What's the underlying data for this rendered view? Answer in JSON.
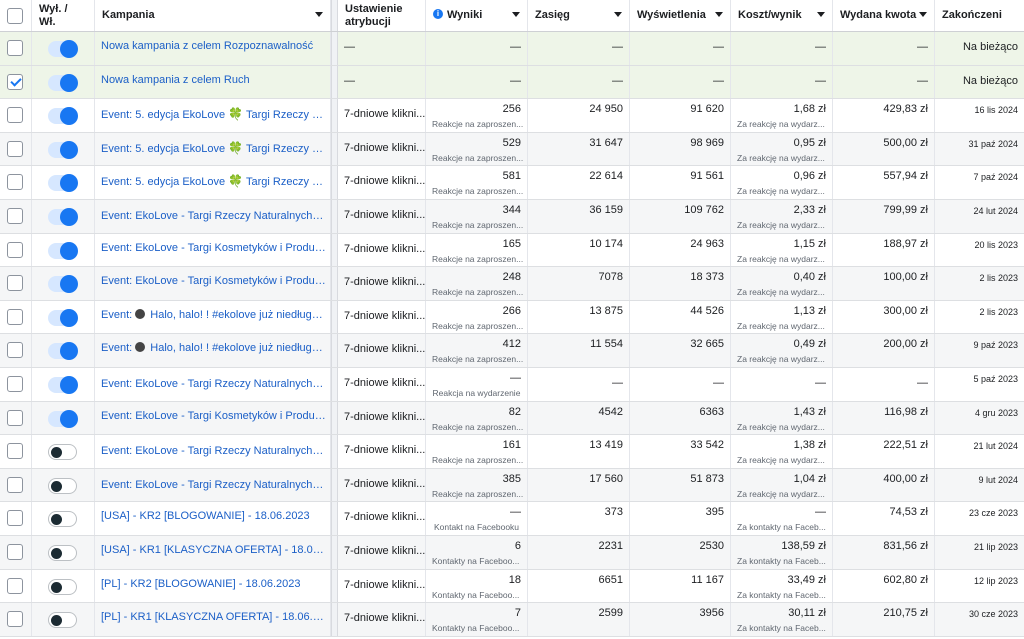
{
  "columns": {
    "toggle": "Wył. / Wł.",
    "campaign": "Kampania",
    "attribution": "Ustawienie atrybucji",
    "results": "Wyniki",
    "reach": "Zasięg",
    "impressions": "Wyświetlenia",
    "cost_per_result": "Koszt/wynik",
    "amount_spent": "Wydana kwota",
    "ends": "Zakończeni"
  },
  "icons": {
    "clover": "🍀",
    "info": "i"
  },
  "rows": [
    {
      "checked": false,
      "on": true,
      "green": true,
      "name": "Nowa kampania z celem Rozpoznawalność",
      "attr": "—",
      "results": "—",
      "results_sub": "",
      "reach": "—",
      "imp": "—",
      "cost": "—",
      "cost_sub": "",
      "spent": "—",
      "ends": "Na bieżąco"
    },
    {
      "checked": true,
      "on": true,
      "green": true,
      "name": "Nowa kampania z celem Ruch",
      "attr": "—",
      "results": "—",
      "results_sub": "",
      "reach": "—",
      "imp": "—",
      "cost": "—",
      "cost_sub": "",
      "spent": "—",
      "ends": "Na bieżąco"
    },
    {
      "checked": false,
      "on": true,
      "name_pre": "Event: 5. edycja EkoLove ",
      "name_icon": "clover",
      "name_post": " Targi Rzeczy Natur...",
      "attr": "7-dniowe klikni...",
      "results": "256",
      "results_sub": "Reakcje na zaproszen...",
      "reach": "24 950",
      "imp": "91 620",
      "cost": "1,68 zł",
      "cost_sub": "Za reakcję na wydarz...",
      "spent": "429,83 zł",
      "ends": "16 lis 2024"
    },
    {
      "checked": false,
      "on": true,
      "name_pre": "Event: 5. edycja EkoLove ",
      "name_icon": "clover",
      "name_post": " Targi Rzeczy Natur...",
      "attr": "7-dniowe klikni...",
      "results": "529",
      "results_sub": "Reakcje na zaproszen...",
      "reach": "31 647",
      "imp": "98 969",
      "cost": "0,95 zł",
      "cost_sub": "Za reakcję na wydarz...",
      "spent": "500,00 zł",
      "ends": "31 paź 2024"
    },
    {
      "checked": false,
      "on": true,
      "name_pre": "Event: 5. edycja EkoLove ",
      "name_icon": "clover",
      "name_post": " Targi Rzeczy Natur...",
      "attr": "7-dniowe klikni...",
      "results": "581",
      "results_sub": "Reakcje na zaproszen...",
      "reach": "22 614",
      "imp": "91 561",
      "cost": "0,96 zł",
      "cost_sub": "Za reakcję na wydarz...",
      "spent": "557,94 zł",
      "ends": "7 paź 2024"
    },
    {
      "checked": false,
      "on": true,
      "name_pre": "Event: EkoLove - Targi Rzeczy Naturalnych",
      "name_icon": "clover",
      "name_post": " 2...",
      "attr": "7-dniowe klikni...",
      "results": "344",
      "results_sub": "Reakcje na zaproszen...",
      "reach": "36 159",
      "imp": "109 762",
      "cost": "2,33 zł",
      "cost_sub": "Za reakcję na wydarz...",
      "spent": "799,99 zł",
      "ends": "24 lut 2024"
    },
    {
      "checked": false,
      "on": true,
      "name_pre": "Event: EkoLove - Targi Kosmetyków i Produktó...",
      "attr": "7-dniowe klikni...",
      "results": "165",
      "results_sub": "Reakcje na zaproszen...",
      "reach": "10 174",
      "imp": "24 963",
      "cost": "1,15 zł",
      "cost_sub": "Za reakcję na wydarz...",
      "spent": "188,97 zł",
      "ends": "20 lis 2023"
    },
    {
      "checked": false,
      "on": true,
      "name_pre": "Event: EkoLove - Targi Kosmetyków i Produktó...",
      "attr": "7-dniowe klikni...",
      "results": "248",
      "results_sub": "Reakcje na zaproszen...",
      "reach": "7078",
      "imp": "18 373",
      "cost": "0,40 zł",
      "cost_sub": "Za reakcję na wydarz...",
      "spent": "100,00 zł",
      "ends": "2 lis 2023"
    },
    {
      "checked": false,
      "on": true,
      "name_pre": "Event: ",
      "name_icon": "pin",
      "name_post": " Halo, halo! ! #ekolove już niedługo w...",
      "attr": "7-dniowe klikni...",
      "results": "266",
      "results_sub": "Reakcje na zaproszen...",
      "reach": "13 875",
      "imp": "44 526",
      "cost": "1,13 zł",
      "cost_sub": "Za reakcję na wydarz...",
      "spent": "300,00 zł",
      "ends": "2 lis 2023"
    },
    {
      "checked": false,
      "on": true,
      "name_pre": "Event: ",
      "name_icon": "pin",
      "name_post": " Halo, halo! ! #ekolove już niedługo w...",
      "attr": "7-dniowe klikni...",
      "results": "412",
      "results_sub": "Reakcje na zaproszen...",
      "reach": "11 554",
      "imp": "32 665",
      "cost": "0,49 zł",
      "cost_sub": "Za reakcję na wydarz...",
      "spent": "200,00 zł",
      "ends": "9 paź 2023"
    },
    {
      "checked": false,
      "on": true,
      "name_pre": "Event: EkoLove - Targi Rzeczy Naturalnych ",
      "name_icon": "clover",
      "name_post": " ...",
      "attr": "7-dniowe klikni...",
      "results": "—",
      "results_sub": "Reakcja na wydarzenie",
      "results_sub_center": true,
      "reach": "—",
      "imp": "—",
      "cost": "—",
      "cost_sub": "",
      "spent": "—",
      "ends": "5 paź 2023"
    },
    {
      "checked": false,
      "on": true,
      "name_pre": "Event: EkoLove - Targi Kosmetyków i Produktó...",
      "attr": "7-dniowe klikni...",
      "results": "82",
      "results_sub": "Reakcje na zaproszen...",
      "reach": "4542",
      "imp": "6363",
      "cost": "1,43 zł",
      "cost_sub": "Za reakcję na wydarz...",
      "spent": "116,98 zł",
      "ends": "4 gru 2023"
    },
    {
      "checked": false,
      "on": false,
      "name_pre": "Event: EkoLove - Targi Rzeczy Naturalnych",
      "name_icon": "clover",
      "name_post": " 2...",
      "attr": "7-dniowe klikni...",
      "results": "161",
      "results_sub": "Reakcje na zaproszen...",
      "reach": "13 419",
      "imp": "33 542",
      "cost": "1,38 zł",
      "cost_sub": "Za reakcję na wydarz...",
      "spent": "222,51 zł",
      "ends": "21 lut 2024"
    },
    {
      "checked": false,
      "on": false,
      "name_pre": "Event: EkoLove - Targi Rzeczy Naturalnych",
      "name_icon": "clover",
      "name_post": " 2...",
      "attr": "7-dniowe klikni...",
      "results": "385",
      "results_sub": "Reakcje na zaproszen...",
      "reach": "17 560",
      "imp": "51 873",
      "cost": "1,04 zł",
      "cost_sub": "Za reakcję na wydarz...",
      "spent": "400,00 zł",
      "ends": "9 lut 2024"
    },
    {
      "checked": false,
      "on": false,
      "name_pre": "[USA] - KR2 [BLOGOWANIE] - 18.06.2023",
      "attr": "7-dniowe klikni...",
      "results": "—",
      "results_sub": "Kontakt na Facebooku",
      "results_sub_center": true,
      "reach": "373",
      "imp": "395",
      "cost": "—",
      "cost_sub": "Za kontakty na Faceb...",
      "spent": "74,53 zł",
      "ends": "23 cze 2023"
    },
    {
      "checked": false,
      "on": false,
      "name_pre": "[USA] - KR1 [KLASYCZNA OFERTA] - 18.06.2023",
      "attr": "7-dniowe klikni...",
      "results": "6",
      "results_sub": "Kontakty na Faceboo...",
      "reach": "2231",
      "imp": "2530",
      "cost": "138,59 zł",
      "cost_sub": "Za kontakty na Faceb...",
      "spent": "831,56 zł",
      "ends": "21 lip 2023"
    },
    {
      "checked": false,
      "on": false,
      "name_pre": "[PL] - KR2 [BLOGOWANIE] - 18.06.2023",
      "attr": "7-dniowe klikni...",
      "results": "18",
      "results_sub": "Kontakty na Faceboo...",
      "reach": "6651",
      "imp": "11 167",
      "cost": "33,49 zł",
      "cost_sub": "Za kontakty na Faceb...",
      "spent": "602,80 zł",
      "ends": "12 lip 2023"
    },
    {
      "checked": false,
      "on": false,
      "name_pre": "[PL] - KR1 [KLASYCZNA OFERTA] - 18.06.2023",
      "attr": "7-dniowe klikni...",
      "results": "7",
      "results_sub": "Kontakty na Faceboo...",
      "reach": "2599",
      "imp": "3956",
      "cost": "30,11 zł",
      "cost_sub": "Za kontakty na Faceb...",
      "spent": "210,75 zł",
      "ends": "30 cze 2023"
    }
  ]
}
